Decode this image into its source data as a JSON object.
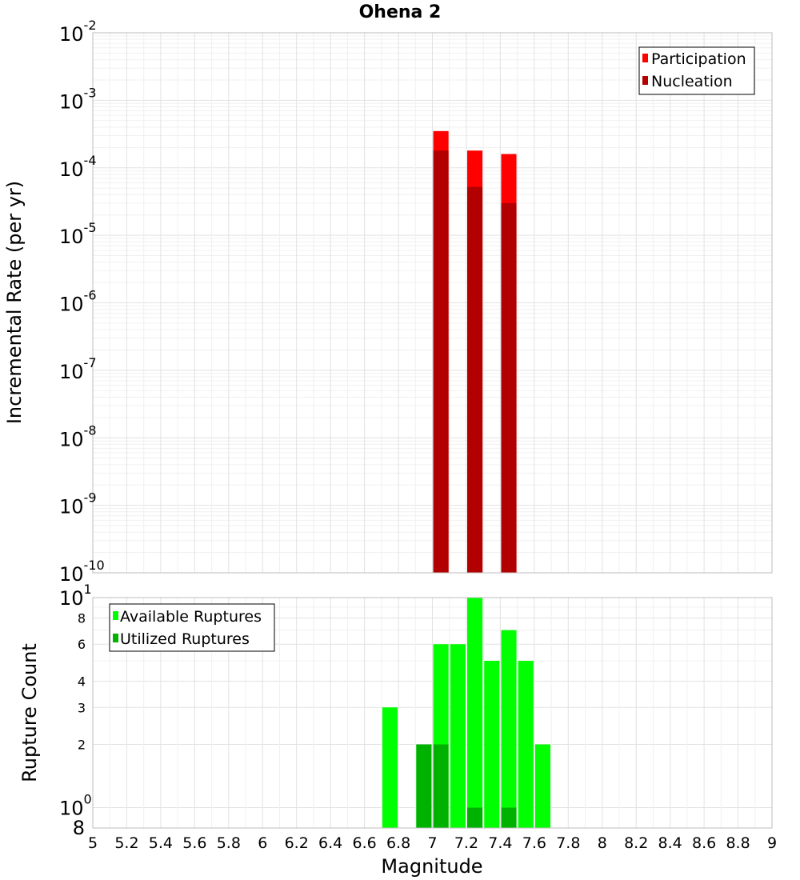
{
  "chart_data": [
    {
      "type": "bar",
      "title": "Ohena 2",
      "ylabel": "Incremental Rate (per yr)",
      "xlabel": "",
      "yscale": "log",
      "ylim": [
        1e-10,
        0.01
      ],
      "xlim": [
        5,
        9
      ],
      "grid": true,
      "legend_position": "top-right",
      "bar_width": 0.09,
      "y_ticks": [
        {
          "base": "10",
          "exp": "-2",
          "value": 0.01
        },
        {
          "base": "10",
          "exp": "-3",
          "value": 0.001
        },
        {
          "base": "10",
          "exp": "-4",
          "value": 0.0001
        },
        {
          "base": "10",
          "exp": "-5",
          "value": 1e-05
        },
        {
          "base": "10",
          "exp": "-6",
          "value": 1e-06
        },
        {
          "base": "10",
          "exp": "-7",
          "value": 1e-07
        },
        {
          "base": "10",
          "exp": "-8",
          "value": 1e-08
        },
        {
          "base": "10",
          "exp": "-9",
          "value": 1e-09
        },
        {
          "base": "10",
          "exp": "-10",
          "value": 1e-10
        }
      ],
      "series": [
        {
          "name": "Participation",
          "color": "#ff0000",
          "points": [
            {
              "x": 7.05,
              "y": 0.00035
            },
            {
              "x": 7.25,
              "y": 0.00018
            },
            {
              "x": 7.45,
              "y": 0.00016
            }
          ]
        },
        {
          "name": "Nucleation",
          "color": "#b20000",
          "points": [
            {
              "x": 7.05,
              "y": 0.00018
            },
            {
              "x": 7.25,
              "y": 5.2e-05
            },
            {
              "x": 7.45,
              "y": 3e-05
            }
          ]
        }
      ]
    },
    {
      "type": "bar",
      "title": "",
      "ylabel": "Rupture Count",
      "xlabel": "Magnitude",
      "yscale": "log",
      "ylim": [
        0.8,
        10
      ],
      "xlim": [
        5,
        9
      ],
      "grid": true,
      "legend_position": "top-left",
      "bar_width": 0.09,
      "y_ticks": [
        {
          "base": "10",
          "exp": "1",
          "value": 10
        },
        {
          "base": "10",
          "exp": "0",
          "value": 1
        }
      ],
      "y_minor_ticks": [
        {
          "label": "8",
          "value": 8
        },
        {
          "label": "6",
          "value": 6
        },
        {
          "label": "4",
          "value": 4
        },
        {
          "label": "3",
          "value": 3
        },
        {
          "label": "2",
          "value": 2
        },
        {
          "label": "8",
          "value": 0.8
        }
      ],
      "x_tick_labels": [
        "5",
        "5.2",
        "5.4",
        "5.6",
        "5.8",
        "6",
        "6.2",
        "6.4",
        "6.6",
        "6.8",
        "7",
        "7.2",
        "7.4",
        "7.6",
        "7.8",
        "8",
        "8.2",
        "8.4",
        "8.6",
        "8.8",
        "9"
      ],
      "series": [
        {
          "name": "Available Ruptures",
          "color": "#00ff00",
          "points": [
            {
              "x": 6.75,
              "y": 3
            },
            {
              "x": 6.95,
              "y": 2
            },
            {
              "x": 7.05,
              "y": 6
            },
            {
              "x": 7.15,
              "y": 6
            },
            {
              "x": 7.25,
              "y": 10
            },
            {
              "x": 7.35,
              "y": 5
            },
            {
              "x": 7.45,
              "y": 7
            },
            {
              "x": 7.55,
              "y": 5
            },
            {
              "x": 7.65,
              "y": 2
            }
          ]
        },
        {
          "name": "Utilized Ruptures",
          "color": "#00b200",
          "points": [
            {
              "x": 6.95,
              "y": 2
            },
            {
              "x": 7.05,
              "y": 2
            },
            {
              "x": 7.25,
              "y": 1
            },
            {
              "x": 7.45,
              "y": 1
            }
          ]
        }
      ]
    }
  ]
}
